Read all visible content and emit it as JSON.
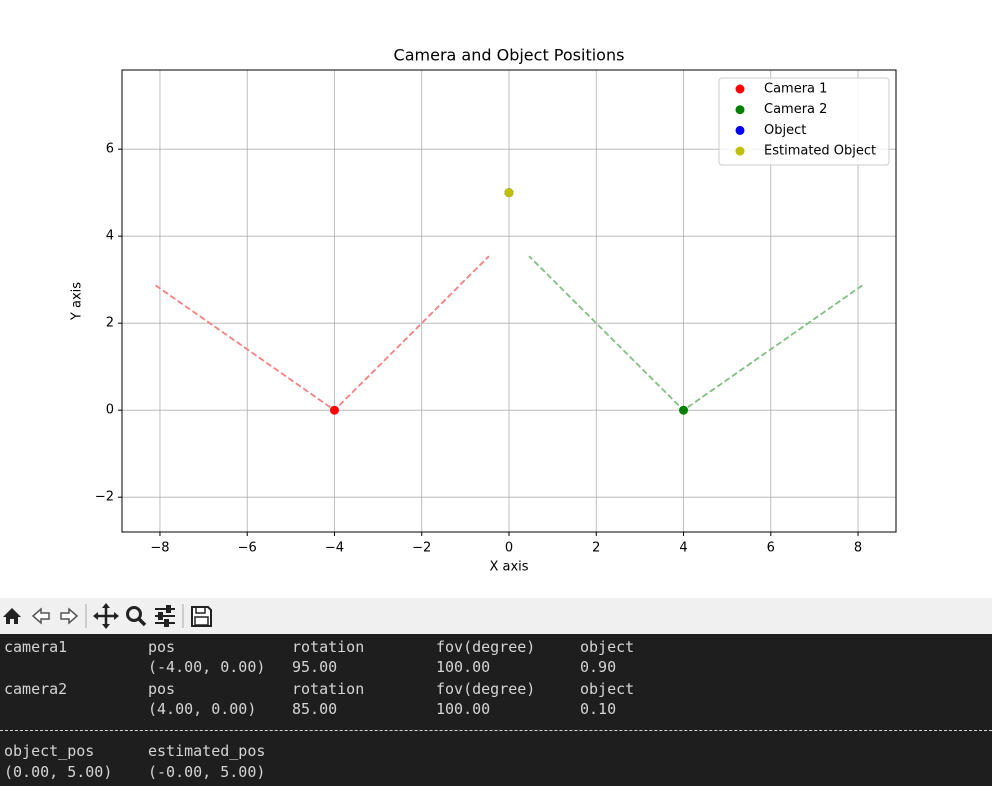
{
  "chart_data": {
    "type": "scatter",
    "title": "Camera and Object Positions",
    "x_label": "X axis",
    "y_label": "Y axis",
    "series": [
      {
        "name": "Camera 1",
        "color": "#ff0000",
        "x": [
          -4
        ],
        "values": [
          0
        ]
      },
      {
        "name": "Camera 2",
        "color": "#008000",
        "x": [
          4
        ],
        "values": [
          0
        ]
      },
      {
        "name": "Object",
        "color": "#0000ff",
        "x": [
          0
        ],
        "values": [
          5
        ]
      },
      {
        "name": "Estimated Object",
        "color": "#bfbf00",
        "x": [
          0
        ],
        "values": [
          5
        ]
      }
    ],
    "lines": [
      {
        "color": "#f47f7f",
        "x": [
          -8.1,
          -4,
          -0.46
        ],
        "values": [
          2.87,
          0,
          3.54
        ]
      },
      {
        "color": "#7fbf7f",
        "x": [
          8.1,
          4,
          0.46
        ],
        "values": [
          2.87,
          0,
          3.54
        ]
      }
    ],
    "xlim": [
      -8.87,
      8.87
    ],
    "ylim": [
      -2.8,
      7.82
    ],
    "xticks": [
      {
        "value": -8,
        "label": "−8"
      },
      {
        "value": -6,
        "label": "−6"
      },
      {
        "value": -4,
        "label": "−4"
      },
      {
        "value": -2,
        "label": "−2"
      },
      0,
      2,
      4,
      6,
      8
    ],
    "yticks": [
      {
        "value": -2,
        "label": "−2"
      },
      0,
      2,
      4,
      6
    ],
    "grid": true,
    "legend": "upper right"
  },
  "console": {
    "cameras": [
      {
        "name": "camera1",
        "labels": [
          "pos",
          "rotation",
          "fov(degree)",
          "object"
        ],
        "values": [
          "(-4.00, 0.00)",
          "95.00",
          "100.00",
          "0.90"
        ]
      },
      {
        "name": "camera2",
        "labels": [
          "pos",
          "rotation",
          "fov(degree)",
          "object"
        ],
        "values": [
          "(4.00, 0.00)",
          "85.00",
          "100.00",
          "0.10"
        ]
      }
    ],
    "positions": {
      "labels": [
        "object_pos",
        "estimated_pos"
      ],
      "values": [
        "(0.00, 5.00)",
        "(-0.00, 5.00)"
      ]
    }
  }
}
